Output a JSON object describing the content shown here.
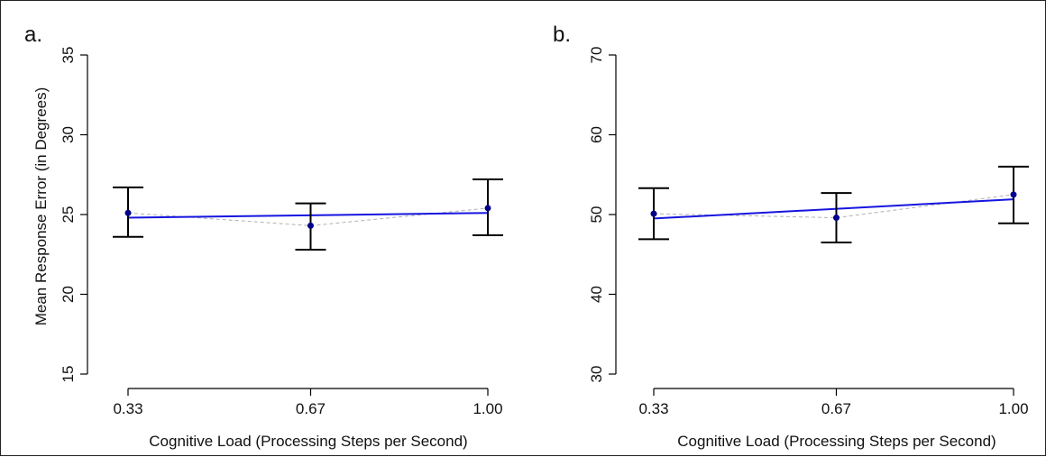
{
  "chart_data": [
    {
      "panel_label": "a.",
      "type": "scatter",
      "x_categories": [
        "0.33",
        "0.67",
        "1.00"
      ],
      "x_positions": [
        0.33,
        0.67,
        1.0
      ],
      "xlabel": "Cognitive Load (Processing Steps per Second)",
      "ylabel": "Mean Response Error (in Degrees)",
      "ylim": [
        15,
        35
      ],
      "yticks": [
        "15",
        "20",
        "25",
        "30",
        "35"
      ],
      "points": [
        {
          "x": 0.33,
          "y": 25.1,
          "err_low": 23.6,
          "err_high": 26.7
        },
        {
          "x": 0.67,
          "y": 24.3,
          "err_low": 22.8,
          "err_high": 25.7
        },
        {
          "x": 1.0,
          "y": 25.4,
          "err_low": 23.7,
          "err_high": 27.2
        }
      ],
      "fit_line": {
        "y_start": 24.8,
        "y_end": 25.1
      },
      "colors": {
        "points": "#00008b",
        "fit": "#1515e0",
        "connector": "#b0b0b0",
        "error_bars": "#000000"
      },
      "grid": false
    },
    {
      "panel_label": "b.",
      "type": "scatter",
      "x_categories": [
        "0.33",
        "0.67",
        "1.00"
      ],
      "x_positions": [
        0.33,
        0.67,
        1.0
      ],
      "xlabel": "Cognitive Load (Processing Steps per Second)",
      "ylabel": "",
      "ylim": [
        30,
        70
      ],
      "yticks": [
        "30",
        "40",
        "50",
        "60",
        "70"
      ],
      "points": [
        {
          "x": 0.33,
          "y": 50.1,
          "err_low": 46.9,
          "err_high": 53.3
        },
        {
          "x": 0.67,
          "y": 49.6,
          "err_low": 46.5,
          "err_high": 52.7
        },
        {
          "x": 1.0,
          "y": 52.5,
          "err_low": 48.9,
          "err_high": 56.0
        }
      ],
      "fit_line": {
        "y_start": 49.5,
        "y_end": 51.9
      },
      "colors": {
        "points": "#00008b",
        "fit": "#1515e0",
        "connector": "#b0b0b0",
        "error_bars": "#000000"
      },
      "grid": false
    }
  ]
}
